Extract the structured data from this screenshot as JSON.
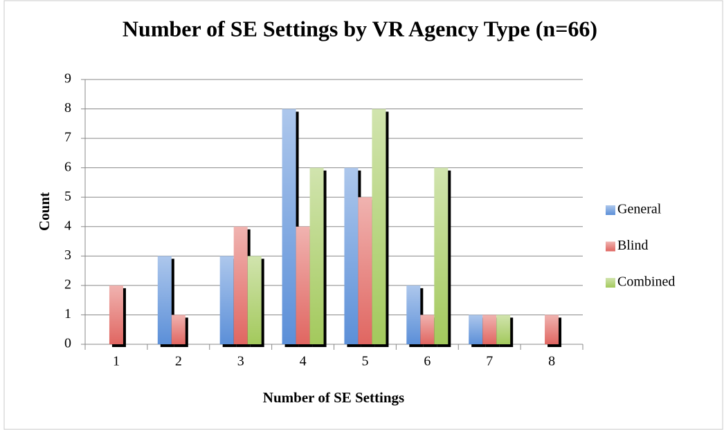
{
  "chart_data": {
    "type": "bar",
    "title": "Number of SE Settings by VR Agency Type (n=66)",
    "x_label": "Number of SE Settings",
    "y_label": "Count",
    "categories": [
      "1",
      "2",
      "3",
      "4",
      "5",
      "6",
      "7",
      "8"
    ],
    "series": [
      {
        "name": "General",
        "color": "#5b8fd8",
        "values": [
          0,
          3,
          3,
          8,
          6,
          2,
          1,
          0
        ]
      },
      {
        "name": "Blind",
        "color": "#e06661",
        "values": [
          2,
          1,
          4,
          4,
          5,
          1,
          1,
          1
        ]
      },
      {
        "name": "Combined",
        "color": "#a3c95c",
        "values": [
          0,
          0,
          3,
          6,
          8,
          6,
          1,
          0
        ]
      }
    ],
    "ylim": [
      0,
      9
    ],
    "yticks": [
      0,
      1,
      2,
      3,
      4,
      5,
      6,
      7,
      8,
      9
    ],
    "grid": true,
    "legend": "right"
  }
}
